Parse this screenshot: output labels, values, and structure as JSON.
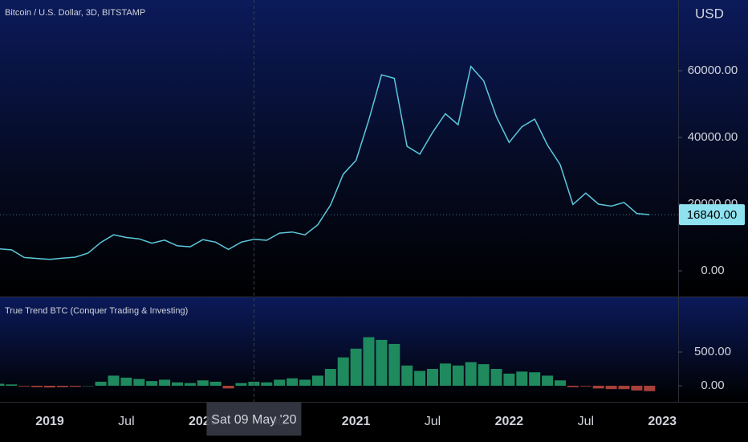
{
  "chart_data": [
    {
      "type": "line",
      "title": "Bitcoin / U.S. Dollar, 3D, BITSTAMP",
      "y_label": "USD",
      "color": "#5cc8dc",
      "x": [
        "2018-09",
        "2018-10",
        "2018-11",
        "2018-12",
        "2019-01",
        "2019-02",
        "2019-03",
        "2019-04",
        "2019-05",
        "2019-06",
        "2019-07",
        "2019-08",
        "2019-09",
        "2019-10",
        "2019-11",
        "2019-12",
        "2020-01",
        "2020-02",
        "2020-03",
        "2020-04",
        "2020-05",
        "2020-06",
        "2020-07",
        "2020-08",
        "2020-09",
        "2020-10",
        "2020-11",
        "2020-12",
        "2021-01",
        "2021-02",
        "2021-03",
        "2021-04",
        "2021-05",
        "2021-06",
        "2021-07",
        "2021-08",
        "2021-09",
        "2021-10",
        "2021-11",
        "2021-12",
        "2022-01",
        "2022-02",
        "2022-03",
        "2022-04",
        "2022-05",
        "2022-06",
        "2022-07",
        "2022-08",
        "2022-09",
        "2022-10",
        "2022-11",
        "2022-12"
      ],
      "values": [
        6600,
        6300,
        4000,
        3700,
        3450,
        3800,
        4100,
        5300,
        8500,
        10800,
        10000,
        9600,
        8300,
        9200,
        7500,
        7200,
        9350,
        8600,
        6400,
        8600,
        9450,
        9150,
        11300,
        11650,
        10800,
        13800,
        19700,
        29000,
        33100,
        45200,
        58800,
        57700,
        37300,
        35000,
        41500,
        47100,
        43800,
        61300,
        57000,
        46200,
        38500,
        43200,
        45500,
        37700,
        31800,
        19900,
        23300,
        20000,
        19400,
        20500,
        17200,
        16840
      ],
      "ylim": [
        -7470,
        81205
      ],
      "yticks": [
        {
          "value": 0,
          "label": "0.00"
        },
        {
          "value": 20000,
          "label": "20000.00"
        },
        {
          "value": 40000,
          "label": "40000.00"
        },
        {
          "value": 60000,
          "label": "60000.00"
        }
      ],
      "last_price": {
        "value": 16840,
        "label": "16840.00"
      },
      "xticks": [
        {
          "value": "2019-01",
          "label": "2019"
        },
        {
          "value": "2019-07",
          "label": "Jul"
        },
        {
          "value": "2020-01",
          "label": "2020"
        },
        {
          "value": "2020-07",
          "label": "Jul"
        },
        {
          "value": "2021-01",
          "label": "2021"
        },
        {
          "value": "2021-07",
          "label": "Jul"
        },
        {
          "value": "2022-01",
          "label": "2022"
        },
        {
          "value": "2022-07",
          "label": "Jul"
        },
        {
          "value": "2023-01",
          "label": "2023"
        }
      ],
      "crosshair": {
        "x": "2020-05",
        "label": "Sat 09 May '20"
      }
    },
    {
      "type": "bar",
      "title": "True Trend BTC (Conquer Trading & Investing)",
      "color": "#1f8a5e",
      "negative_color": "#a8403a",
      "x": [
        "2018-09",
        "2018-10",
        "2018-11",
        "2018-12",
        "2019-01",
        "2019-02",
        "2019-03",
        "2019-04",
        "2019-05",
        "2019-06",
        "2019-07",
        "2019-08",
        "2019-09",
        "2019-10",
        "2019-11",
        "2019-12",
        "2020-01",
        "2020-02",
        "2020-03",
        "2020-04",
        "2020-05",
        "2020-06",
        "2020-07",
        "2020-08",
        "2020-09",
        "2020-10",
        "2020-11",
        "2020-12",
        "2021-01",
        "2021-02",
        "2021-03",
        "2021-04",
        "2021-05",
        "2021-06",
        "2021-07",
        "2021-08",
        "2021-09",
        "2021-10",
        "2021-11",
        "2021-12",
        "2022-01",
        "2022-02",
        "2022-03",
        "2022-04",
        "2022-05",
        "2022-06",
        "2022-07",
        "2022-08",
        "2022-09",
        "2022-10",
        "2022-11",
        "2022-12"
      ],
      "values": [
        30,
        20,
        -10,
        -20,
        -25,
        -20,
        -15,
        0,
        60,
        150,
        120,
        100,
        70,
        90,
        50,
        40,
        80,
        60,
        -40,
        40,
        60,
        50,
        90,
        110,
        90,
        150,
        250,
        420,
        550,
        720,
        680,
        620,
        300,
        220,
        250,
        330,
        300,
        350,
        320,
        250,
        180,
        210,
        200,
        150,
        80,
        -20,
        -10,
        -40,
        -50,
        -50,
        -70,
        -80
      ],
      "ylim": [
        -238,
        1310
      ],
      "yticks": [
        {
          "value": 0,
          "label": "0.00"
        },
        {
          "value": 500,
          "label": "500.00"
        }
      ]
    }
  ]
}
